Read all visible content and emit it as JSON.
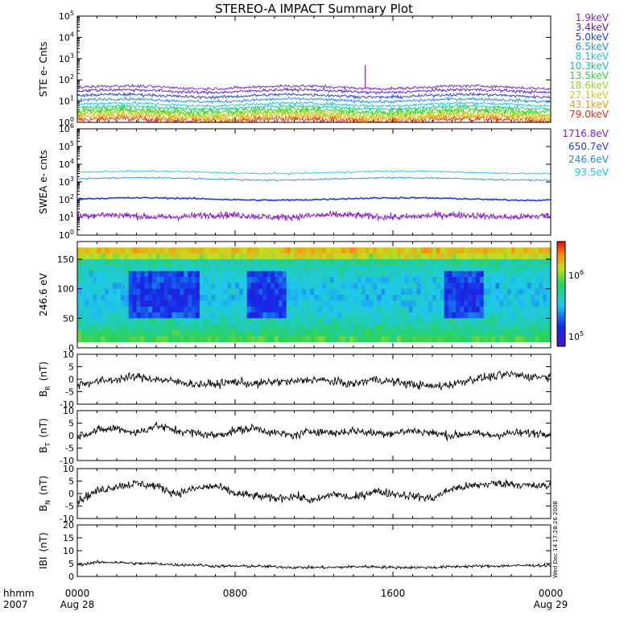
{
  "title": "STEREO-A IMPACT Summary Plot",
  "x_axis": {
    "corner_labels": [
      "hhmm",
      "2007"
    ],
    "ticks": [
      {
        "time": "0000",
        "date": "Aug 28"
      },
      {
        "time": "0800",
        "date": ""
      },
      {
        "time": "1600",
        "date": ""
      },
      {
        "time": "0000",
        "date": "Aug 29"
      }
    ]
  },
  "side_stamp": "Wed Dec 14 17:28:26 2008",
  "colors": {
    "grid_axis": "#000000",
    "panel_border": "#000000"
  },
  "chart_data": [
    {
      "type": "line",
      "ylabel": "STE e- Cnts",
      "scale": "log",
      "ylim_exponents": [
        0,
        5
      ],
      "ytick_exponents": [
        0,
        1,
        2,
        3,
        4,
        5
      ],
      "series": [
        {
          "name": "1.9keV",
          "color": "#8a1fc8",
          "level": 45
        },
        {
          "name": "3.4keV",
          "color": "#4b1fbf",
          "level": 30
        },
        {
          "name": "5.0keV",
          "color": "#1f3fd6",
          "level": 18
        },
        {
          "name": "6.5keV",
          "color": "#1e8fe0",
          "level": 11
        },
        {
          "name": "8.1keV",
          "color": "#1ac9d9",
          "level": 7
        },
        {
          "name": "10.3keV",
          "color": "#18c88a",
          "level": 5
        },
        {
          "name": "13.5keV",
          "color": "#2ed62e",
          "level": 3.6
        },
        {
          "name": "18.6keV",
          "color": "#9ad61e",
          "level": 2.8
        },
        {
          "name": "27.1keV",
          "color": "#d8c81a",
          "level": 2.2
        },
        {
          "name": "43.1keV",
          "color": "#f0a010",
          "level": 1.7
        },
        {
          "name": "79.0keV",
          "color": "#ee2a10",
          "level": 1.3
        }
      ],
      "annotations": [
        {
          "x_hour": 14.6,
          "value": 500
        }
      ]
    },
    {
      "type": "line",
      "ylabel": "SWEA e- cnts",
      "scale": "log",
      "ylim_exponents": [
        0,
        6
      ],
      "ytick_exponents": [
        0,
        1,
        2,
        3,
        4,
        5,
        6
      ],
      "series": [
        {
          "name": "1716.8eV",
          "color": "#8a1fc8",
          "level": 12
        },
        {
          "name": "650.7eV",
          "color": "#1f3fd6",
          "level": 110
        },
        {
          "name": "246.6eV",
          "color": "#1e8fe0",
          "level": 1500
        },
        {
          "name": "93.5eV",
          "color": "#1ac9d9",
          "level": 3500
        }
      ]
    },
    {
      "type": "heatmap",
      "ylabel": "246.6 eV",
      "ylim": [
        0,
        180
      ],
      "yticks": [
        0,
        50,
        100,
        150
      ],
      "colorbar": {
        "ticks": [
          {
            "base": "10",
            "exp": "5"
          },
          {
            "base": "10",
            "exp": "6"
          }
        ]
      },
      "low_bands_hours": [
        [
          2.5,
          6
        ],
        [
          8.5,
          10.5
        ],
        [
          18.5,
          20.5
        ]
      ]
    },
    {
      "type": "line",
      "ylabel": "B",
      "ylabel_sub": "R",
      "unit": "(nT)",
      "ylim": [
        -10,
        10
      ],
      "yticks": [
        -10,
        -5,
        0,
        5,
        10
      ],
      "series": [
        {
          "color": "#000000",
          "mean_values": [
            -2,
            -1,
            0,
            1,
            0,
            -1,
            -2,
            -2,
            -1,
            -2,
            -1,
            -1,
            0,
            -1,
            -2,
            0,
            -1,
            -2,
            -3,
            -2,
            0,
            1,
            2,
            1
          ]
        }
      ]
    },
    {
      "type": "line",
      "ylabel": "B",
      "ylabel_sub": "T",
      "unit": "(nT)",
      "ylim": [
        -10,
        10
      ],
      "yticks": [
        -10,
        -5,
        0,
        5,
        10
      ],
      "series": [
        {
          "color": "#000000",
          "mean_values": [
            0,
            2,
            3,
            1,
            4,
            2,
            1,
            0,
            2,
            3,
            1,
            0,
            2,
            1,
            2,
            1,
            1,
            2,
            1,
            0,
            1,
            0,
            1,
            1
          ]
        }
      ]
    },
    {
      "type": "line",
      "ylabel": "B",
      "ylabel_sub": "N",
      "unit": "(nT)",
      "ylim": [
        -10,
        10
      ],
      "yticks": [
        -10,
        -5,
        0,
        5,
        10
      ],
      "series": [
        {
          "color": "#000000",
          "mean_values": [
            -3,
            1,
            3,
            4,
            3,
            0,
            2,
            3,
            0,
            -1,
            -2,
            -1,
            -3,
            0,
            -2,
            1,
            0,
            -1,
            -2,
            2,
            3,
            4,
            4,
            3
          ]
        }
      ]
    },
    {
      "type": "line",
      "ylabel": "IBI",
      "unit": "(nT)",
      "ylim": [
        0,
        20
      ],
      "yticks": [
        0,
        5,
        10,
        15,
        20
      ],
      "series": [
        {
          "color": "#000000",
          "mean_values": [
            4.5,
            5.5,
            5.5,
            5,
            5,
            4.5,
            4.5,
            4,
            4,
            4,
            3.8,
            3.5,
            3.5,
            3.5,
            3.8,
            3.8,
            3.5,
            3.5,
            3.5,
            3.8,
            4,
            4,
            4.2,
            4.3
          ]
        }
      ]
    }
  ]
}
